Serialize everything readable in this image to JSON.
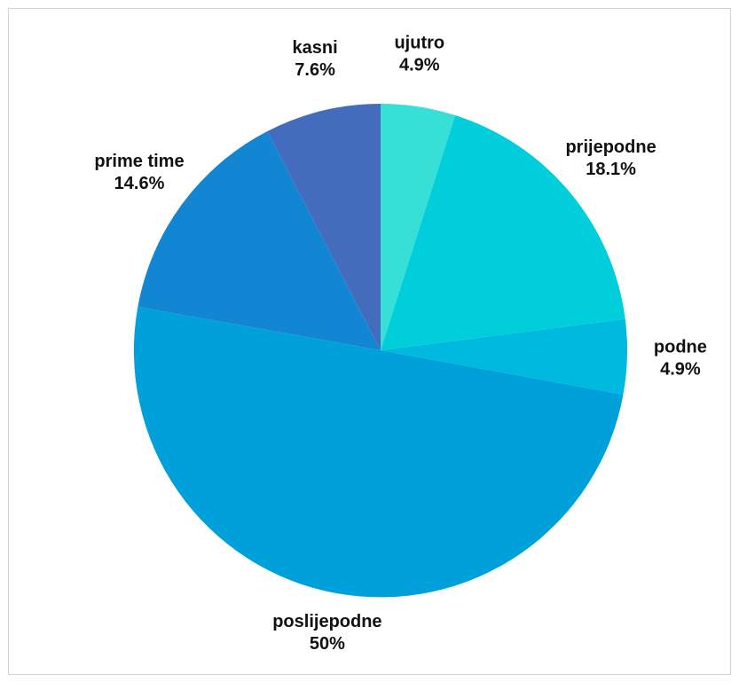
{
  "chart_data": {
    "type": "pie",
    "title": "",
    "start_angle_deg": 0,
    "direction": "clockwise",
    "legend": "none",
    "slices": [
      {
        "name": "ujutro",
        "value": 4.9,
        "label": "4.9%",
        "color": "#36e0d6"
      },
      {
        "name": "prijepodne",
        "value": 18.1,
        "label": "18.1%",
        "color": "#00cfdb"
      },
      {
        "name": "podne",
        "value": 4.9,
        "label": "4.9%",
        "color": "#00b9df"
      },
      {
        "name": "poslijepodne",
        "value": 50,
        "label": "50%",
        "color": "#00a0db"
      },
      {
        "name": "prime time",
        "value": 14.6,
        "label": "14.6%",
        "color": "#1286d2"
      },
      {
        "name": "kasni",
        "value": 7.6,
        "label": "7.6%",
        "color": "#436cbc"
      }
    ]
  }
}
